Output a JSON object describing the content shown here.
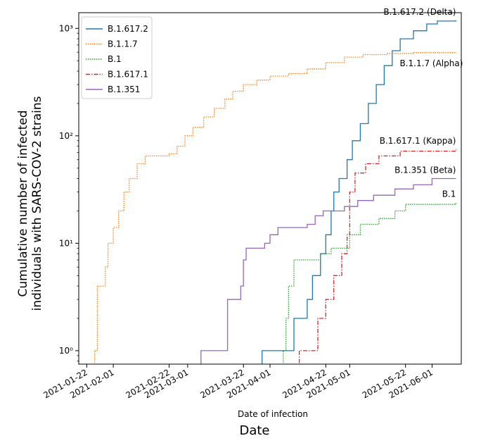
{
  "chart_data": {
    "type": "line",
    "xlabel": "Date of infection",
    "xlabel_secondary": "Date",
    "ylabel_line1": "Cumulative number of infected",
    "ylabel_line2": "individuals with SARS-COV-2 strains",
    "yscale": "log",
    "ylim": [
      0.75,
      1400
    ],
    "xlim": [
      "2021-01-19",
      "2021-06-12"
    ],
    "legend_position": "top-left",
    "grid": false,
    "x_ticks": [
      "2021-01-22",
      "2021-02-01",
      "2021-02-22",
      "2021-03-01",
      "2021-03-22",
      "2021-04-01",
      "2021-04-22",
      "2021-05-01",
      "2021-05-22",
      "2021-06-01"
    ],
    "y_ticks": [
      {
        "value": 1,
        "label": "10⁰"
      },
      {
        "value": 10,
        "label": "10¹"
      },
      {
        "value": 100,
        "label": "10²"
      },
      {
        "value": 1000,
        "label": "10³"
      }
    ],
    "series": [
      {
        "name": "B.1.617.2",
        "color": "#1f77b4",
        "dash": "solid",
        "annotation": "B.1.617.2 (Delta)",
        "points": [
          [
            "2021-03-29",
            1
          ],
          [
            "2021-04-10",
            2
          ],
          [
            "2021-04-15",
            3
          ],
          [
            "2021-04-17",
            5
          ],
          [
            "2021-04-20",
            8
          ],
          [
            "2021-04-22",
            12
          ],
          [
            "2021-04-24",
            20
          ],
          [
            "2021-04-25",
            30
          ],
          [
            "2021-04-27",
            40
          ],
          [
            "2021-04-30",
            60
          ],
          [
            "2021-05-02",
            90
          ],
          [
            "2021-05-05",
            130
          ],
          [
            "2021-05-08",
            200
          ],
          [
            "2021-05-11",
            300
          ],
          [
            "2021-05-14",
            450
          ],
          [
            "2021-05-17",
            620
          ],
          [
            "2021-05-20",
            800
          ],
          [
            "2021-05-25",
            950
          ],
          [
            "2021-05-30",
            1100
          ],
          [
            "2021-06-03",
            1170
          ],
          [
            "2021-06-10",
            1190
          ]
        ]
      },
      {
        "name": "B.1.1.7",
        "color": "#ff7f0e",
        "dash": "dotted",
        "annotation": "B.1.1.7 (Alpha)",
        "points": [
          [
            "2021-01-25",
            1
          ],
          [
            "2021-01-26",
            4
          ],
          [
            "2021-01-29",
            6
          ],
          [
            "2021-01-30",
            10
          ],
          [
            "2021-02-01",
            14
          ],
          [
            "2021-02-03",
            20
          ],
          [
            "2021-02-05",
            30
          ],
          [
            "2021-02-07",
            40
          ],
          [
            "2021-02-10",
            55
          ],
          [
            "2021-02-13",
            65
          ],
          [
            "2021-02-22",
            68
          ],
          [
            "2021-02-25",
            80
          ],
          [
            "2021-02-28",
            100
          ],
          [
            "2021-03-03",
            120
          ],
          [
            "2021-03-07",
            150
          ],
          [
            "2021-03-11",
            180
          ],
          [
            "2021-03-15",
            220
          ],
          [
            "2021-03-18",
            260
          ],
          [
            "2021-03-22",
            300
          ],
          [
            "2021-03-27",
            330
          ],
          [
            "2021-04-01",
            360
          ],
          [
            "2021-04-08",
            380
          ],
          [
            "2021-04-15",
            420
          ],
          [
            "2021-04-22",
            480
          ],
          [
            "2021-04-29",
            540
          ],
          [
            "2021-05-06",
            570
          ],
          [
            "2021-05-15",
            585
          ],
          [
            "2021-05-25",
            595
          ],
          [
            "2021-06-10",
            600
          ]
        ]
      },
      {
        "name": "B.1",
        "color": "#2ca02c",
        "dash": "dotted",
        "annotation": "B.1",
        "points": [
          [
            "2021-04-06",
            1
          ],
          [
            "2021-04-07",
            2
          ],
          [
            "2021-04-08",
            4
          ],
          [
            "2021-04-10",
            7
          ],
          [
            "2021-04-20",
            8
          ],
          [
            "2021-04-24",
            9
          ],
          [
            "2021-05-01",
            12
          ],
          [
            "2021-05-05",
            15
          ],
          [
            "2021-05-12",
            17
          ],
          [
            "2021-05-18",
            20
          ],
          [
            "2021-05-22",
            23
          ],
          [
            "2021-06-10",
            24
          ]
        ]
      },
      {
        "name": "B.1.617.1",
        "color": "#d62728",
        "dash": "dashdot",
        "annotation": "B.1.617.1 (Kappa)",
        "points": [
          [
            "2021-04-12",
            1
          ],
          [
            "2021-04-19",
            2
          ],
          [
            "2021-04-22",
            3
          ],
          [
            "2021-04-25",
            5
          ],
          [
            "2021-04-28",
            8
          ],
          [
            "2021-04-30",
            12
          ],
          [
            "2021-05-01",
            30
          ],
          [
            "2021-05-03",
            45
          ],
          [
            "2021-05-07",
            55
          ],
          [
            "2021-05-12",
            65
          ],
          [
            "2021-05-20",
            72
          ],
          [
            "2021-06-10",
            75
          ]
        ]
      },
      {
        "name": "B.1.351",
        "color": "#9467bd",
        "dash": "solid",
        "annotation": "B.1.351 (Beta)",
        "points": [
          [
            "2021-03-06",
            1
          ],
          [
            "2021-03-16",
            3
          ],
          [
            "2021-03-21",
            4
          ],
          [
            "2021-03-22",
            7
          ],
          [
            "2021-03-23",
            9
          ],
          [
            "2021-03-30",
            10
          ],
          [
            "2021-04-01",
            12
          ],
          [
            "2021-04-04",
            14
          ],
          [
            "2021-04-15",
            15
          ],
          [
            "2021-04-18",
            18
          ],
          [
            "2021-04-21",
            20
          ],
          [
            "2021-04-29",
            22
          ],
          [
            "2021-05-04",
            25
          ],
          [
            "2021-05-10",
            28
          ],
          [
            "2021-05-18",
            32
          ],
          [
            "2021-05-25",
            35
          ],
          [
            "2021-06-01",
            40
          ],
          [
            "2021-06-10",
            40
          ]
        ]
      }
    ]
  }
}
